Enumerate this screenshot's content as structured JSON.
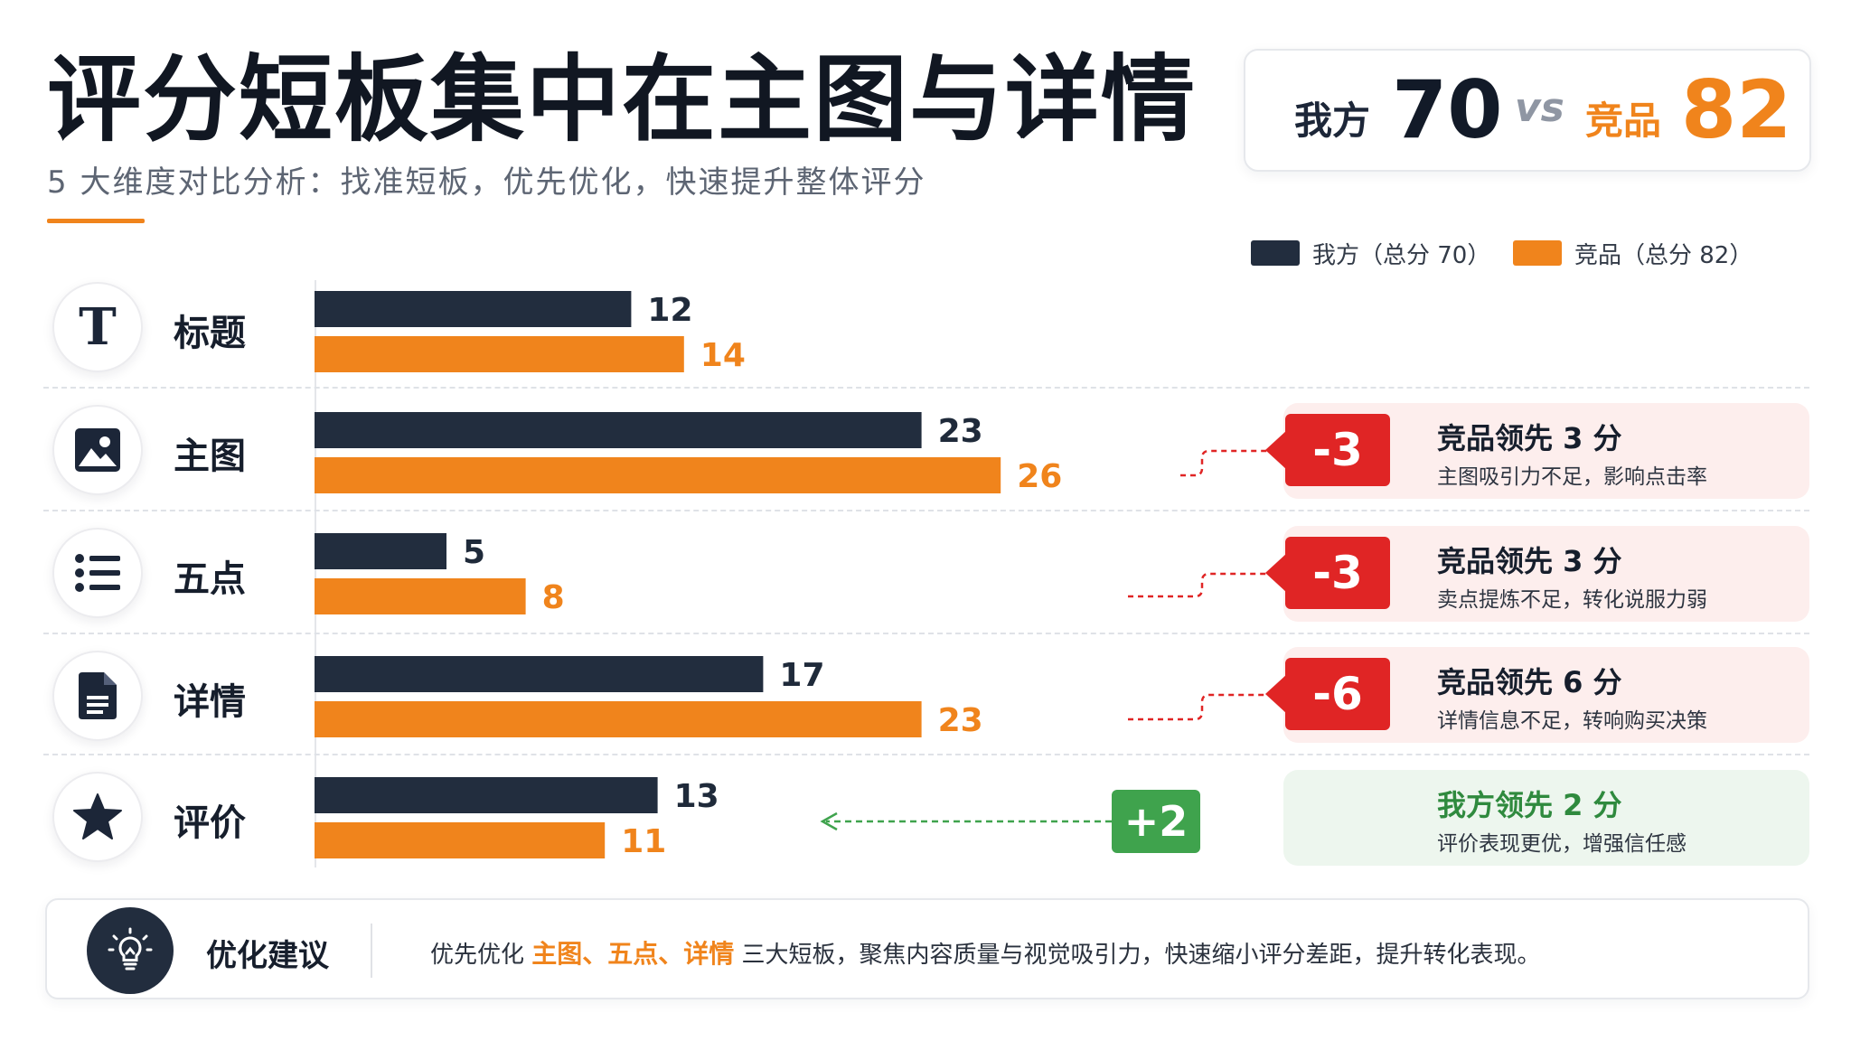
{
  "header": {
    "title": "评分短板集中在主图与详情",
    "subtitle": "5 大维度对比分析：找准短板，优先优化，快速提升整体评分"
  },
  "score_card": {
    "our_label": "我方",
    "our_score": "70",
    "vs": "vs",
    "comp_label": "竞品",
    "comp_score": "82"
  },
  "colors": {
    "ours": "#222d3e",
    "competitor": "#f0841c",
    "negative": "#e02525",
    "negative_bg": "#fdeeed",
    "positive": "#3fa34d",
    "positive_bg": "#edf6ee",
    "positive_text": "#2f8a3e"
  },
  "chart_data": {
    "type": "bar",
    "orientation": "horizontal",
    "categories": [
      "标题",
      "主图",
      "五点",
      "详情",
      "评价"
    ],
    "category_icons": [
      "text-icon",
      "image-icon",
      "list-icon",
      "document-icon",
      "star-icon"
    ],
    "series": [
      {
        "name": "我方（总分 70）",
        "values": [
          12,
          23,
          5,
          17,
          13
        ]
      },
      {
        "name": "竞品（总分 82）",
        "values": [
          14,
          26,
          8,
          23,
          11
        ]
      }
    ],
    "xlim": [
      0,
      30
    ],
    "legend_position": "top-right",
    "grid": false
  },
  "callouts": [
    {
      "category": "主图",
      "delta": "-3",
      "type": "negative",
      "headline": "竞品领先 3 分",
      "desc": "主图吸引力不足，影响点击率"
    },
    {
      "category": "五点",
      "delta": "-3",
      "type": "negative",
      "headline": "竞品领先 3 分",
      "desc": "卖点提炼不足，转化说服力弱"
    },
    {
      "category": "详情",
      "delta": "-6",
      "type": "negative",
      "headline": "竞品领先 6 分",
      "desc": "详情信息不足，转响购买决策"
    },
    {
      "category": "评价",
      "delta": "+2",
      "type": "positive",
      "headline": "我方领先 2 分",
      "desc": "评价表现更优，增强信任感"
    }
  ],
  "suggestion": {
    "title": "优化建议",
    "prefix": "优先优化 ",
    "highlight": "主图、五点、详情",
    "suffix": " 三大短板，聚焦内容质量与视觉吸引力，快速缩小评分差距，提升转化表现。"
  }
}
